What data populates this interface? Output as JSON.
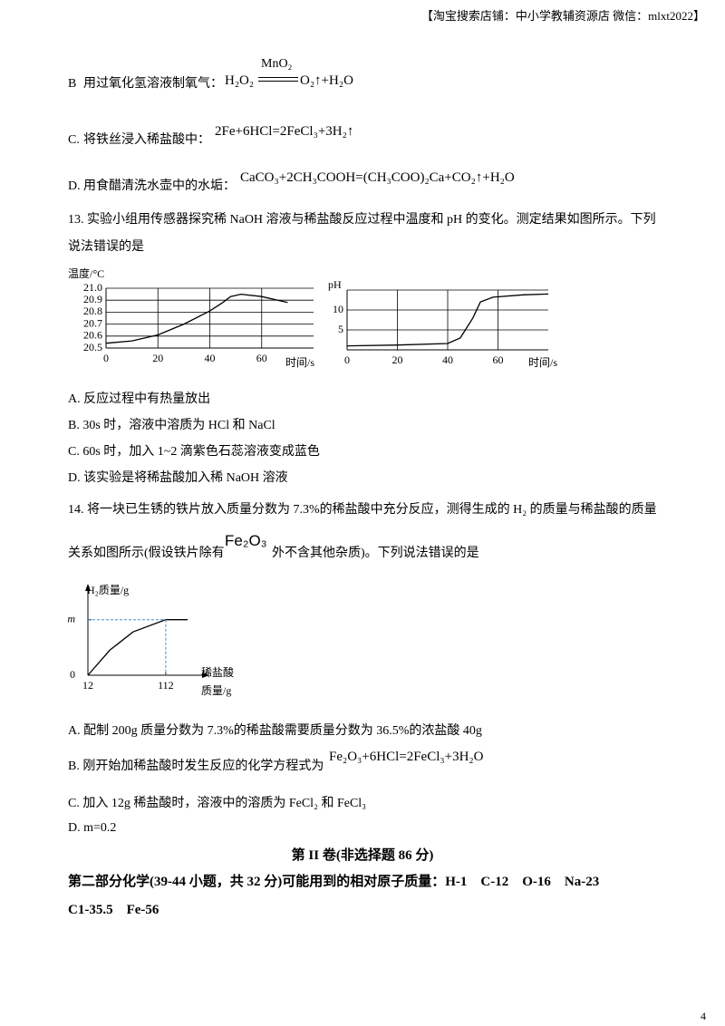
{
  "header": "【淘宝搜索店铺：中小学教辅资源店 微信：mlxt2022】",
  "question12_options": [
    {
      "label": "B",
      "text": "用过氧化氢溶液制氧气：",
      "equation_left": "H₂O₂",
      "condition": "MnO₂",
      "equation_right": "O₂↑+H₂O"
    },
    {
      "label": "C.",
      "text": "将铁丝浸入稀盐酸中：",
      "equation": "2Fe+6HCl=2FeCl₃+3H₂↑"
    },
    {
      "label": "D.",
      "text": "用食醋清洗水壶中的水垢：",
      "equation": "CaCO₃+2CH₃COOH=(CH₃COO)₂Ca+CO₂↑+H₂O"
    }
  ],
  "question13": {
    "stem": [
      "13. 实验小组用传感器探究稀 NaOH 溶液与稀盐酸反应过程中温度和 pH 的变化。测定结果如图所示。下列",
      "说法错误的是"
    ],
    "options": [
      "A. 反应过程中有热量放出",
      "B. 30s 时，溶液中溶质为 HCl 和 NaCl",
      "C. 60s 时，加入 1~2 滴紫色石蕊溶液变成蓝色",
      "D. 该实验是将稀盐酸加入稀 NaOH 溶液"
    ]
  },
  "chart_data": [
    {
      "type": "line",
      "ylabel": "温度/°C",
      "xlabel": "时间/s",
      "color": "#000000",
      "grid": true,
      "x": [
        0,
        10,
        20,
        30,
        40,
        45,
        48,
        52,
        60,
        70
      ],
      "values": [
        20.54,
        20.56,
        20.61,
        20.7,
        20.81,
        20.88,
        20.93,
        20.95,
        20.93,
        20.88
      ],
      "xlim": [
        0,
        80
      ],
      "ylim": [
        20.5,
        21.0
      ],
      "xticks": [
        0,
        20,
        40,
        60
      ],
      "yticks": [
        20.5,
        20.6,
        20.7,
        20.8,
        20.9,
        {
          "value": 21.0,
          "label": "21.0"
        }
      ]
    },
    {
      "type": "line",
      "ylabel": "pH",
      "xlabel": "时间/s",
      "color": "#000000",
      "grid": true,
      "x": [
        0,
        20,
        40,
        45,
        50,
        53,
        58,
        70,
        80
      ],
      "values": [
        1,
        1.2,
        1.6,
        3,
        8,
        12,
        13.2,
        13.8,
        14
      ],
      "xlim": [
        0,
        80
      ],
      "ylim": [
        0,
        15
      ],
      "xticks": [
        0,
        20,
        40,
        60
      ],
      "yticks": [
        5,
        10
      ]
    },
    {
      "type": "line",
      "ylabel": "H₂质量/g",
      "xlabel": [
        "稀盐酸",
        "质量/g"
      ],
      "color": "#000000",
      "grid": false,
      "x": [
        12,
        40,
        70,
        112,
        140
      ],
      "values": [
        0,
        0.45,
        0.78,
        1,
        1
      ],
      "xlim": [
        12,
        161
      ],
      "ylim": [
        0,
        1.55
      ],
      "xticks": [
        12,
        112
      ],
      "yticks": [
        0,
        {
          "value": 1,
          "label": "m"
        }
      ]
    }
  ],
  "question14": {
    "stem_line1": "14. 将一块已生锈的铁片放入质量分数为 7.3%的稀盐酸中充分反应，测得生成的 H₂ 的质量与稀盐酸的质量",
    "stem_line2_before": "关系如图所示(假设铁片除有",
    "stem_formula": "Fe₂O₃",
    "stem_line2_after": "外不含其他杂质)。下列说法错误的是",
    "options": [
      {
        "text": "A. 配制 200g 质量分数为 7.3%的稀盐酸需要质量分数为 36.5%的浓盐酸 40g"
      },
      {
        "text": "B. 刚开始加稀盐酸时发生反应的化学方程式为",
        "equation": "Fe₂O₃+6HCl=2FeCl₃+3H₂O"
      },
      {
        "text": "C. 加入 12g 稀盐酸时，溶液中的溶质为 FeCl₂ 和 FeCl₃"
      },
      {
        "text": "D. m=0.2"
      }
    ]
  },
  "section": {
    "title": "第 II 卷(非选择题 86 分)",
    "lines": [
      "第二部分化学(39-44 小题，共 32 分)可能用到的相对原子质量：H-1　C-12　O-16　Na-23",
      "C1-35.5　Fe-56"
    ]
  },
  "page_number": "4"
}
